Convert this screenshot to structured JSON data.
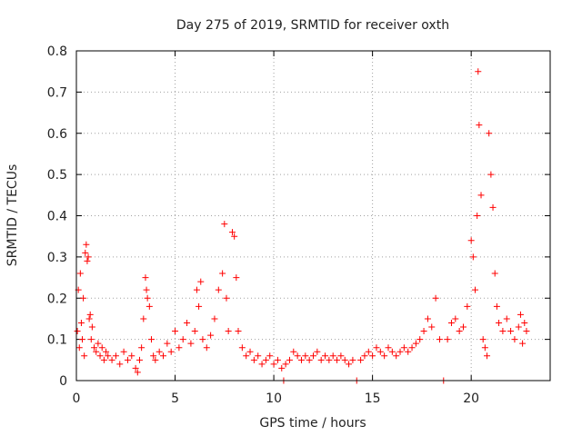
{
  "chart_data": {
    "type": "scatter",
    "title": "Day 275 of 2019, SRMTID for receiver oxth",
    "xlabel": "GPS time / hours",
    "ylabel": "SRMTID / TECUs",
    "xlim": [
      0,
      24
    ],
    "ylim": [
      0,
      0.8
    ],
    "xticks": [
      0,
      5,
      10,
      15,
      20
    ],
    "xtick_labels": [
      "0",
      "5",
      "10",
      "15",
      "20"
    ],
    "yticks": [
      0,
      0.1,
      0.2,
      0.3,
      0.4,
      0.5,
      0.6,
      0.7,
      0.8
    ],
    "ytick_labels": [
      "0",
      "0.1",
      "0.2",
      "0.3",
      "0.4",
      "0.5",
      "0.6",
      "0.7",
      "0.8"
    ],
    "grid": true,
    "marker": "+",
    "series": [
      {
        "name": "SRMTID",
        "color": "#ff0000",
        "points": [
          [
            0.05,
            0.12
          ],
          [
            0.1,
            0.22
          ],
          [
            0.15,
            0.08
          ],
          [
            0.2,
            0.26
          ],
          [
            0.25,
            0.14
          ],
          [
            0.3,
            0.1
          ],
          [
            0.35,
            0.2
          ],
          [
            0.4,
            0.06
          ],
          [
            0.45,
            0.31
          ],
          [
            0.5,
            0.33
          ],
          [
            0.55,
            0.29
          ],
          [
            0.6,
            0.3
          ],
          [
            0.65,
            0.15
          ],
          [
            0.7,
            0.16
          ],
          [
            0.75,
            0.1
          ],
          [
            0.8,
            0.13
          ],
          [
            0.9,
            0.08
          ],
          [
            1.0,
            0.07
          ],
          [
            1.1,
            0.09
          ],
          [
            1.2,
            0.06
          ],
          [
            1.3,
            0.08
          ],
          [
            1.4,
            0.05
          ],
          [
            1.5,
            0.07
          ],
          [
            1.6,
            0.06
          ],
          [
            1.8,
            0.05
          ],
          [
            2.0,
            0.06
          ],
          [
            2.2,
            0.04
          ],
          [
            2.4,
            0.07
          ],
          [
            2.6,
            0.05
          ],
          [
            2.8,
            0.06
          ],
          [
            3.0,
            0.03
          ],
          [
            3.1,
            0.02
          ],
          [
            3.2,
            0.05
          ],
          [
            3.3,
            0.08
          ],
          [
            3.4,
            0.15
          ],
          [
            3.5,
            0.25
          ],
          [
            3.55,
            0.22
          ],
          [
            3.6,
            0.2
          ],
          [
            3.7,
            0.18
          ],
          [
            3.8,
            0.1
          ],
          [
            3.9,
            0.06
          ],
          [
            4.0,
            0.05
          ],
          [
            4.2,
            0.07
          ],
          [
            4.4,
            0.06
          ],
          [
            4.6,
            0.09
          ],
          [
            4.8,
            0.07
          ],
          [
            5.0,
            0.12
          ],
          [
            5.2,
            0.08
          ],
          [
            5.4,
            0.1
          ],
          [
            5.6,
            0.14
          ],
          [
            5.8,
            0.09
          ],
          [
            6.0,
            0.12
          ],
          [
            6.1,
            0.22
          ],
          [
            6.2,
            0.18
          ],
          [
            6.3,
            0.24
          ],
          [
            6.4,
            0.1
          ],
          [
            6.6,
            0.08
          ],
          [
            6.8,
            0.11
          ],
          [
            7.0,
            0.15
          ],
          [
            7.2,
            0.22
          ],
          [
            7.4,
            0.26
          ],
          [
            7.5,
            0.38
          ],
          [
            7.6,
            0.2
          ],
          [
            7.7,
            0.12
          ],
          [
            7.9,
            0.36
          ],
          [
            8.0,
            0.35
          ],
          [
            8.1,
            0.25
          ],
          [
            8.2,
            0.12
          ],
          [
            8.4,
            0.08
          ],
          [
            8.6,
            0.06
          ],
          [
            8.8,
            0.07
          ],
          [
            9.0,
            0.05
          ],
          [
            9.2,
            0.06
          ],
          [
            9.4,
            0.04
          ],
          [
            9.6,
            0.05
          ],
          [
            9.8,
            0.06
          ],
          [
            10.0,
            0.04
          ],
          [
            10.2,
            0.05
          ],
          [
            10.4,
            0.03
          ],
          [
            10.5,
            0.0
          ],
          [
            10.6,
            0.04
          ],
          [
            10.8,
            0.05
          ],
          [
            11.0,
            0.07
          ],
          [
            11.2,
            0.06
          ],
          [
            11.4,
            0.05
          ],
          [
            11.6,
            0.06
          ],
          [
            11.8,
            0.05
          ],
          [
            12.0,
            0.06
          ],
          [
            12.2,
            0.07
          ],
          [
            12.4,
            0.05
          ],
          [
            12.6,
            0.06
          ],
          [
            12.8,
            0.05
          ],
          [
            13.0,
            0.06
          ],
          [
            13.2,
            0.05
          ],
          [
            13.4,
            0.06
          ],
          [
            13.6,
            0.05
          ],
          [
            13.8,
            0.04
          ],
          [
            14.0,
            0.05
          ],
          [
            14.2,
            0.0
          ],
          [
            14.4,
            0.05
          ],
          [
            14.6,
            0.06
          ],
          [
            14.8,
            0.07
          ],
          [
            15.0,
            0.06
          ],
          [
            15.2,
            0.08
          ],
          [
            15.4,
            0.07
          ],
          [
            15.6,
            0.06
          ],
          [
            15.8,
            0.08
          ],
          [
            16.0,
            0.07
          ],
          [
            16.2,
            0.06
          ],
          [
            16.4,
            0.07
          ],
          [
            16.6,
            0.08
          ],
          [
            16.8,
            0.07
          ],
          [
            17.0,
            0.08
          ],
          [
            17.2,
            0.09
          ],
          [
            17.4,
            0.1
          ],
          [
            17.6,
            0.12
          ],
          [
            17.8,
            0.15
          ],
          [
            18.0,
            0.13
          ],
          [
            18.2,
            0.2
          ],
          [
            18.4,
            0.1
          ],
          [
            18.6,
            0.0
          ],
          [
            18.8,
            0.1
          ],
          [
            19.0,
            0.14
          ],
          [
            19.2,
            0.15
          ],
          [
            19.4,
            0.12
          ],
          [
            19.6,
            0.13
          ],
          [
            19.8,
            0.18
          ],
          [
            20.0,
            0.34
          ],
          [
            20.1,
            0.3
          ],
          [
            20.2,
            0.22
          ],
          [
            20.3,
            0.4
          ],
          [
            20.35,
            0.75
          ],
          [
            20.4,
            0.62
          ],
          [
            20.5,
            0.45
          ],
          [
            20.6,
            0.1
          ],
          [
            20.7,
            0.08
          ],
          [
            20.8,
            0.06
          ],
          [
            20.9,
            0.6
          ],
          [
            21.0,
            0.5
          ],
          [
            21.1,
            0.42
          ],
          [
            21.2,
            0.26
          ],
          [
            21.3,
            0.18
          ],
          [
            21.4,
            0.14
          ],
          [
            21.6,
            0.12
          ],
          [
            21.8,
            0.15
          ],
          [
            22.0,
            0.12
          ],
          [
            22.2,
            0.1
          ],
          [
            22.4,
            0.13
          ],
          [
            22.5,
            0.16
          ],
          [
            22.6,
            0.09
          ],
          [
            22.7,
            0.14
          ],
          [
            22.8,
            0.12
          ]
        ]
      }
    ]
  }
}
